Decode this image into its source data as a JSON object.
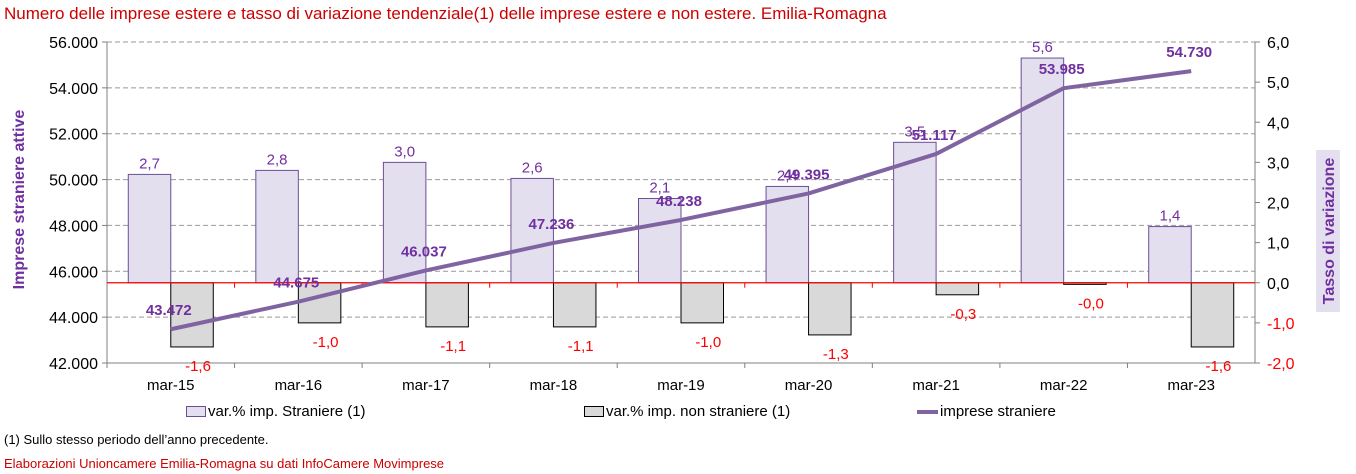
{
  "title": "Numero delle imprese estere e tasso di variazione tendenziale(1) delle imprese estere e non estere. Emilia-Romagna",
  "footnote": "(1) Sullo stesso periodo dell’anno precedente.",
  "source": "Elaborazioni Unioncamere Emilia-Romagna su dati InfoCamere Movimprese",
  "colors": {
    "title": "#cc0000",
    "bar_foreign_fill": "#e4dfee",
    "bar_foreign_stroke": "#6b4f96",
    "bar_nonforeign_fill": "#d9d9d9",
    "bar_nonforeign_stroke": "#000000",
    "line": "#8064a2",
    "line_label": "#7030a0",
    "neg_label": "#ff0000",
    "zero_line": "#ff0000",
    "grid": "#999999",
    "axis_title": "#7030a0"
  },
  "chart_data": {
    "type": "bar+line",
    "title": "Numero delle imprese estere e tasso di variazione tendenziale(1) delle imprese estere e non estere. Emilia-Romagna",
    "categories": [
      "mar-15",
      "mar-16",
      "mar-17",
      "mar-18",
      "mar-19",
      "mar-20",
      "mar-21",
      "mar-22",
      "mar-23"
    ],
    "series": [
      {
        "name": "var.% imp. Straniere (1)",
        "type": "bar",
        "axis": "right",
        "values": [
          2.7,
          2.8,
          3.0,
          2.6,
          2.1,
          2.4,
          3.5,
          5.6,
          1.4
        ],
        "labels": [
          "2,7",
          "2,8",
          "3,0",
          "2,6",
          "2,1",
          "2,4",
          "3,5",
          "5,6",
          "1,4"
        ]
      },
      {
        "name": "var.% imp. non straniere (1)",
        "type": "bar",
        "axis": "right",
        "values": [
          -1.6,
          -1.0,
          -1.1,
          -1.1,
          -1.0,
          -1.3,
          -0.3,
          -0.04,
          -1.6
        ],
        "labels": [
          "-1,6",
          "-1,0",
          "-1,1",
          "-1,1",
          "-1,0",
          "-1,3",
          "-0,3",
          "-0,0",
          "-1,6"
        ]
      },
      {
        "name": "imprese straniere",
        "type": "line",
        "axis": "left",
        "values": [
          43472,
          44675,
          46037,
          47236,
          48238,
          49395,
          51117,
          53985,
          54730
        ],
        "labels": [
          "43.472",
          "44.675",
          "46.037",
          "47.236",
          "48.238",
          "49.395",
          "51.117",
          "53.985",
          "54.730"
        ]
      }
    ],
    "y_left": {
      "label": "Imprese  straniere  attive",
      "range": [
        42000,
        56000
      ],
      "ticks": [
        56000,
        54000,
        52000,
        50000,
        48000,
        46000,
        44000,
        42000
      ],
      "tick_labels": [
        "56.000",
        "54.000",
        "52.000",
        "50.000",
        "48.000",
        "46.000",
        "44.000",
        "42.000"
      ]
    },
    "y_right": {
      "label": "Tasso di variazione",
      "range": [
        -2.0,
        6.0
      ],
      "ticks": [
        6,
        5,
        4,
        3,
        2,
        1,
        0,
        -1,
        -2
      ],
      "tick_labels": [
        "6,0",
        "5,0",
        "4,0",
        "3,0",
        "2,0",
        "1,0",
        "0,0",
        "-1,0",
        "-2,0"
      ]
    },
    "grid": true,
    "legend": {
      "position": "bottom",
      "entries": [
        "var.% imp. Straniere (1)",
        "var.% imp. non straniere (1)",
        "imprese straniere"
      ]
    }
  }
}
